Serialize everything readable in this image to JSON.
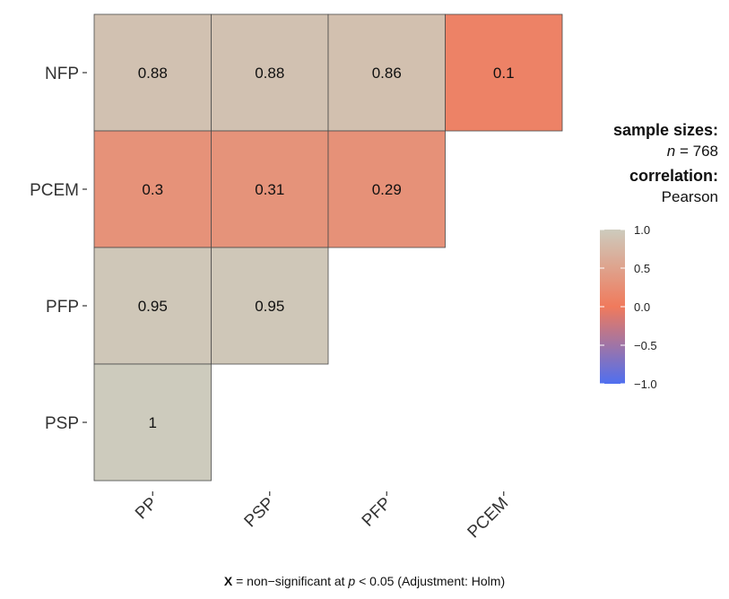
{
  "chart_data": {
    "type": "heatmap",
    "x_categories": [
      "PP",
      "PSP",
      "PFP",
      "PCEM"
    ],
    "y_categories": [
      "NFP",
      "PCEM",
      "PFP",
      "PSP"
    ],
    "cells": [
      {
        "row": "NFP",
        "col": "PP",
        "label": "0.88",
        "value": 0.88
      },
      {
        "row": "NFP",
        "col": "PSP",
        "label": "0.88",
        "value": 0.88
      },
      {
        "row": "NFP",
        "col": "PFP",
        "label": "0.86",
        "value": 0.86
      },
      {
        "row": "NFP",
        "col": "PCEM",
        "label": "0.1",
        "value": 0.1
      },
      {
        "row": "PCEM",
        "col": "PP",
        "label": "0.3",
        "value": 0.3
      },
      {
        "row": "PCEM",
        "col": "PSP",
        "label": "0.31",
        "value": 0.31
      },
      {
        "row": "PCEM",
        "col": "PFP",
        "label": "0.29",
        "value": 0.29
      },
      {
        "row": "PFP",
        "col": "PP",
        "label": "0.95",
        "value": 0.95
      },
      {
        "row": "PFP",
        "col": "PSP",
        "label": "0.95",
        "value": 0.95
      },
      {
        "row": "PSP",
        "col": "PP",
        "label": "1",
        "value": 1.0
      }
    ],
    "colorscale": {
      "min": -1.0,
      "max": 1.0,
      "low_color": "#4f6ff0",
      "mid_color": "#f07a5c",
      "high_color": "#cdcbbd",
      "ticks": [
        "1.0",
        "0.5",
        "0.0",
        "−0.5",
        "−1.0"
      ],
      "tick_values": [
        1.0,
        0.5,
        0.0,
        -0.5,
        -1.0
      ]
    }
  },
  "legend": {
    "sample_sizes_title": "sample sizes:",
    "n_label": "n",
    "n_equals": " = 768",
    "correlation_title": "correlation:",
    "correlation_type": "Pearson"
  },
  "caption": {
    "x_mark": "X",
    "part1": " = non−significant at ",
    "p_label": "p",
    "part2": " < 0.05 (Adjustment: Holm)"
  }
}
